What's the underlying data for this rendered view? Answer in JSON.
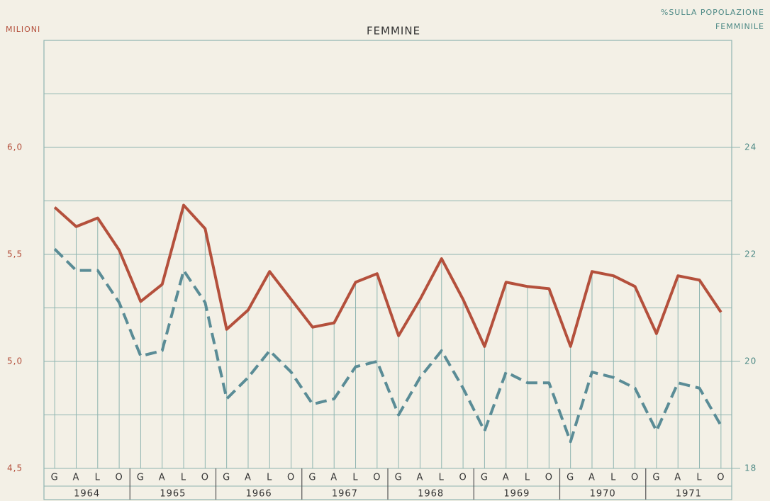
{
  "chart_data": {
    "type": "line",
    "title": "FEMMINE",
    "y_label": "MILIONI",
    "y2_label": [
      "%SULLA POPOLAZIONE",
      "FEMMINILE"
    ],
    "categories": [
      "G",
      "A",
      "L",
      "O",
      "G",
      "A",
      "L",
      "O",
      "G",
      "A",
      "L",
      "O",
      "G",
      "A",
      "L",
      "O",
      "G",
      "A",
      "L",
      "O",
      "G",
      "A",
      "L",
      "O",
      "G",
      "A",
      "L",
      "O",
      "G",
      "A",
      "L",
      "O"
    ],
    "years": [
      "1964",
      "1965",
      "1966",
      "1967",
      "1968",
      "1969",
      "1970",
      "1971"
    ],
    "ylim": [
      4.5,
      6.5
    ],
    "yticks": [
      {
        "value": 4.5,
        "label": "4,5"
      },
      {
        "value": 5.0,
        "label": "5,0"
      },
      {
        "value": 5.5,
        "label": "5,5"
      },
      {
        "value": 6.0,
        "label": "6,0"
      }
    ],
    "minor_yticks": [
      4.75,
      5.25,
      5.75,
      6.25
    ],
    "y2lim": [
      18,
      26
    ],
    "y2ticks": [
      18,
      20,
      22,
      24
    ],
    "grid": true,
    "series": [
      {
        "name": "Milioni",
        "color": "#b4503c",
        "style": "solid",
        "values": [
          5.72,
          5.63,
          5.67,
          5.52,
          5.28,
          5.36,
          5.73,
          5.62,
          5.15,
          5.24,
          5.42,
          5.29,
          5.16,
          5.18,
          5.37,
          5.41,
          5.12,
          5.29,
          5.48,
          5.29,
          5.07,
          5.37,
          5.35,
          5.34,
          5.07,
          5.42,
          5.4,
          5.35,
          5.13,
          5.4,
          5.38,
          5.23
        ]
      },
      {
        "name": "% sulla popolazione femminile",
        "color": "#5a8c96",
        "style": "dashed",
        "axis": "y2",
        "values": [
          22.1,
          21.7,
          21.7,
          21.1,
          20.1,
          20.2,
          21.7,
          21.1,
          19.3,
          19.7,
          20.2,
          19.8,
          19.2,
          19.3,
          19.9,
          20.0,
          19.0,
          19.7,
          20.2,
          19.5,
          18.7,
          19.8,
          19.6,
          19.6,
          18.5,
          19.8,
          19.7,
          19.5,
          18.7,
          19.6,
          19.5,
          18.8
        ]
      }
    ]
  }
}
